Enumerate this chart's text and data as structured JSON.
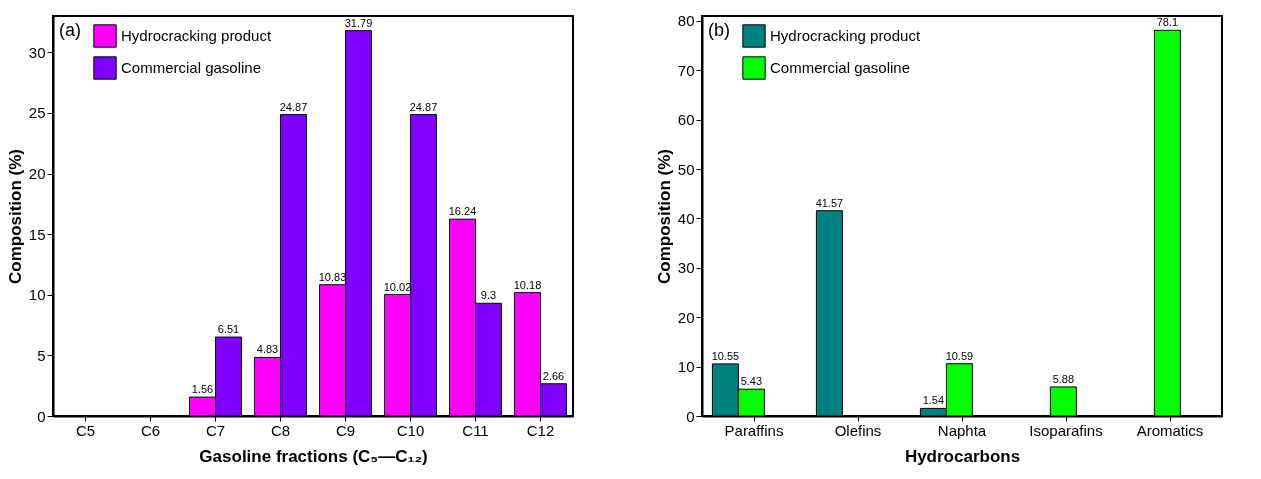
{
  "chart_data": [
    {
      "type": "bar",
      "xlabel": "Gasoline fractions (C₅—C₁₂)",
      "ylabel": "Composition (%)",
      "annotations": [
        "(a)"
      ],
      "categories": [
        "C5",
        "C6",
        "C7",
        "C8",
        "C9",
        "C10",
        "C11",
        "C12"
      ],
      "series": [
        {
          "name": "Hydrocracking product",
          "color": "#ff00ff",
          "values": [
            null,
            null,
            1.56,
            4.83,
            10.83,
            10.02,
            16.24,
            10.18
          ]
        },
        {
          "name": "Commercial gasoline",
          "color": "#8000ff",
          "values": [
            null,
            null,
            6.51,
            24.87,
            31.79,
            24.87,
            9.3,
            2.66
          ]
        }
      ],
      "ylim": [
        0,
        33
      ],
      "yticks": [
        0,
        5,
        10,
        15,
        20,
        25,
        30
      ],
      "data_labels": true,
      "legend": "top left"
    },
    {
      "type": "bar",
      "xlabel": "Hydrocarbons",
      "ylabel": "Composition (%)",
      "annotations": [
        "(b)"
      ],
      "categories": [
        "Paraffins",
        "Olefins",
        "Naphta",
        "Isoparafins",
        "Aromatics"
      ],
      "series": [
        {
          "name": "Hydrocracking product",
          "color": "#008080",
          "values": [
            10.55,
            41.57,
            1.54,
            null,
            null
          ]
        },
        {
          "name": "Commercial gasoline",
          "color": "#00ff00",
          "values": [
            5.43,
            null,
            10.59,
            5.88,
            78.1
          ]
        }
      ],
      "ylim": [
        0,
        81
      ],
      "yticks": [
        0,
        10,
        20,
        30,
        40,
        50,
        60,
        70,
        80
      ],
      "data_labels": true,
      "legend": "top left"
    }
  ]
}
